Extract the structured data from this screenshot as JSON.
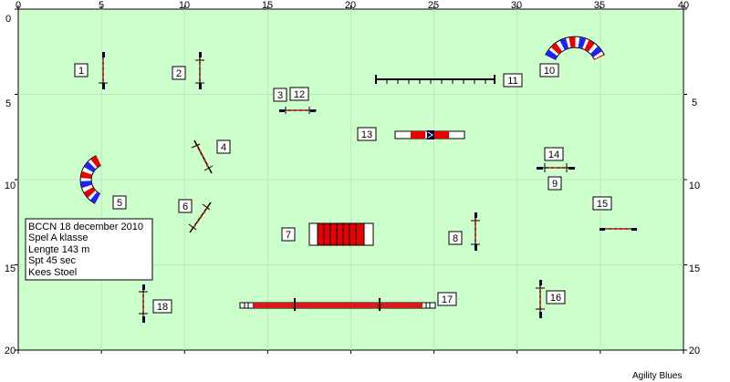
{
  "course": {
    "axis_top": [
      "0",
      "5",
      "10",
      "15",
      "20",
      "25",
      "30",
      "35",
      "40"
    ],
    "axis_left": [
      "0",
      "5",
      "10",
      "15",
      "20"
    ],
    "axis_right": [
      "5",
      "10",
      "15",
      "20"
    ],
    "axis_x_max": 40,
    "axis_y_max": 20,
    "field_color": "#ccffcc",
    "grid_color": "#bfe6bf",
    "info_lines": [
      "BCCN 18 december 2010",
      "Spel A klasse",
      "Lengte 143 m",
      "Spt 45 sec",
      "Kees Stoel"
    ],
    "credit": "Agility Blues",
    "obstacle_numbers": [
      "1",
      "2",
      "3",
      "4",
      "5",
      "6",
      "7",
      "8",
      "9",
      "10",
      "11",
      "12",
      "13",
      "14",
      "15",
      "16",
      "17",
      "18"
    ]
  }
}
